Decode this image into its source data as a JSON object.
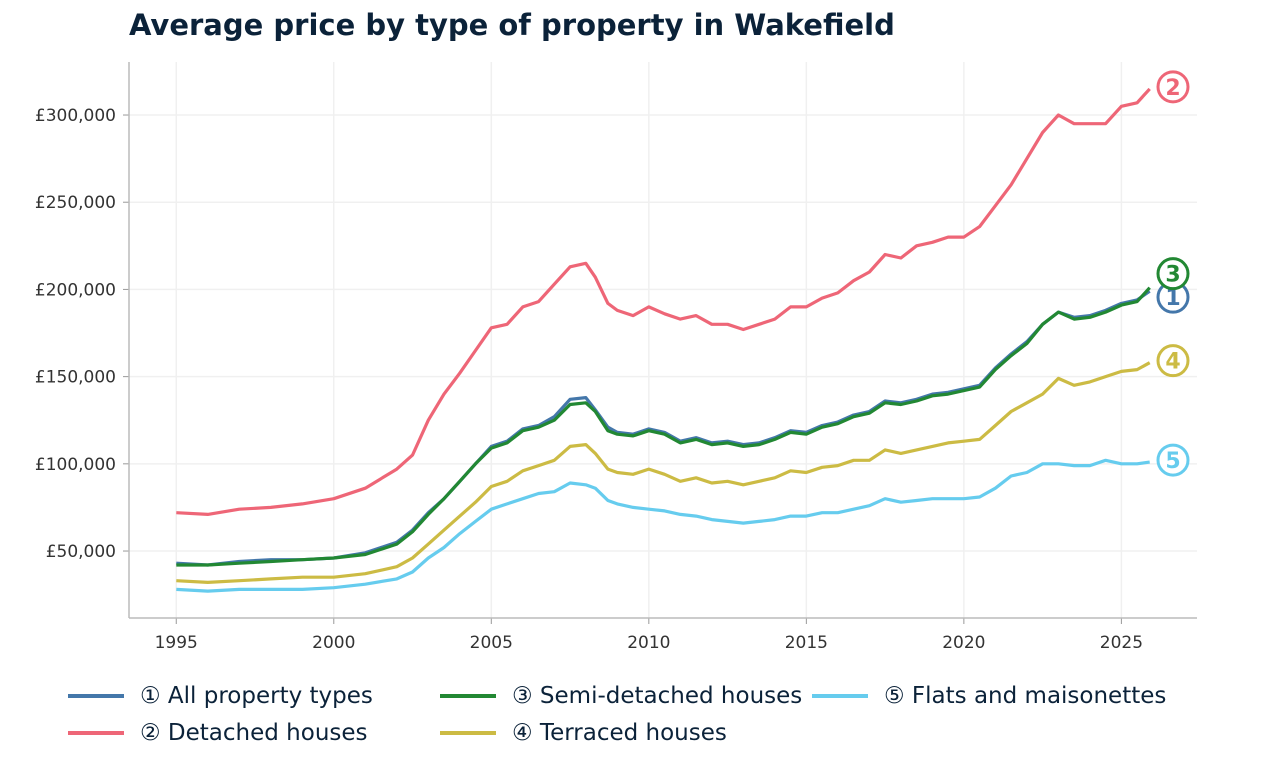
{
  "title": "Average price by type of property in Wakefield",
  "chart_data": {
    "type": "line",
    "title": "Average price by type of property in Wakefield",
    "xlabel": "",
    "ylabel": "",
    "xlim": [
      1993.5,
      2027.4
    ],
    "ylim": [
      11600,
      330400
    ],
    "xticks": [
      1995,
      2000,
      2005,
      2010,
      2015,
      2020,
      2025
    ],
    "xtick_labels": [
      "1995",
      "2000",
      "2005",
      "2010",
      "2015",
      "2020",
      "2025"
    ],
    "yticks": [
      50000,
      100000,
      150000,
      200000,
      250000,
      300000
    ],
    "ytick_labels": [
      "£50,000",
      "£100,000",
      "£150,000",
      "£200,000",
      "£250,000",
      "£300,000"
    ],
    "grid": true,
    "legend_placement": "bottom",
    "x": [
      1995,
      1996,
      1997,
      1998,
      1999,
      2000,
      2001,
      2002,
      2002.5,
      2003,
      2003.5,
      2004,
      2004.5,
      2005,
      2005.5,
      2006,
      2006.5,
      2007,
      2007.5,
      2008,
      2008.3,
      2008.7,
      2009,
      2009.5,
      2010,
      2010.5,
      2011,
      2011.5,
      2012,
      2012.5,
      2013,
      2013.5,
      2014,
      2014.5,
      2015,
      2015.5,
      2016,
      2016.5,
      2017,
      2017.5,
      2018,
      2018.5,
      2019,
      2019.5,
      2020,
      2020.5,
      2021,
      2021.5,
      2022,
      2022.5,
      2023,
      2023.5,
      2024,
      2024.5,
      2025,
      2025.5,
      2025.9
    ],
    "series": [
      {
        "name": "① All property types",
        "marker": "1",
        "color": "#4477aa",
        "values": [
          43000,
          42000,
          44000,
          45000,
          45000,
          46000,
          49000,
          55000,
          62000,
          72000,
          80000,
          90000,
          100000,
          110000,
          113000,
          120000,
          122000,
          127000,
          137000,
          138000,
          131000,
          121000,
          118000,
          117000,
          120000,
          118000,
          113000,
          115000,
          112000,
          113000,
          111000,
          112000,
          115000,
          119000,
          118000,
          122000,
          124000,
          128000,
          130000,
          136000,
          135000,
          137000,
          140000,
          141000,
          143000,
          145000,
          155000,
          163000,
          170000,
          180000,
          187000,
          184000,
          185000,
          188000,
          192000,
          194000,
          199000
        ]
      },
      {
        "name": "② Detached houses",
        "marker": "2",
        "color": "#ee6677",
        "values": [
          72000,
          71000,
          74000,
          75000,
          77000,
          80000,
          86000,
          97000,
          105000,
          125000,
          140000,
          152000,
          165000,
          178000,
          180000,
          190000,
          193000,
          203000,
          213000,
          215000,
          207000,
          192000,
          188000,
          185000,
          190000,
          186000,
          183000,
          185000,
          180000,
          180000,
          177000,
          180000,
          183000,
          190000,
          190000,
          195000,
          198000,
          205000,
          210000,
          220000,
          218000,
          225000,
          227000,
          230000,
          230000,
          236000,
          248000,
          260000,
          275000,
          290000,
          300000,
          295000,
          295000,
          295000,
          305000,
          307000,
          315000
        ]
      },
      {
        "name": "③ Semi-detached houses",
        "marker": "3",
        "color": "#228833",
        "values": [
          42000,
          42000,
          43000,
          44000,
          45000,
          46000,
          48000,
          54000,
          61000,
          71000,
          80000,
          90000,
          100000,
          109000,
          112000,
          119000,
          121000,
          125000,
          134000,
          135000,
          130000,
          119000,
          117000,
          116000,
          119000,
          117000,
          112000,
          114000,
          111000,
          112000,
          110000,
          111000,
          114000,
          118000,
          117000,
          121000,
          123000,
          127000,
          129000,
          135000,
          134000,
          136000,
          139000,
          140000,
          142000,
          144000,
          154000,
          162000,
          169000,
          180000,
          187000,
          183000,
          184000,
          187000,
          191000,
          193000,
          201000
        ]
      },
      {
        "name": "④ Terraced houses",
        "marker": "4",
        "color": "#ccbb44",
        "values": [
          33000,
          32000,
          33000,
          34000,
          35000,
          35000,
          37000,
          41000,
          46000,
          54000,
          62000,
          70000,
          78000,
          87000,
          90000,
          96000,
          99000,
          102000,
          110000,
          111000,
          106000,
          97000,
          95000,
          94000,
          97000,
          94000,
          90000,
          92000,
          89000,
          90000,
          88000,
          90000,
          92000,
          96000,
          95000,
          98000,
          99000,
          102000,
          102000,
          108000,
          106000,
          108000,
          110000,
          112000,
          113000,
          114000,
          122000,
          130000,
          135000,
          140000,
          149000,
          145000,
          147000,
          150000,
          153000,
          154000,
          158000
        ]
      },
      {
        "name": "⑤ Flats and maisonettes",
        "marker": "5",
        "color": "#66ccee",
        "values": [
          28000,
          27000,
          28000,
          28000,
          28000,
          29000,
          31000,
          34000,
          38000,
          46000,
          52000,
          60000,
          67000,
          74000,
          77000,
          80000,
          83000,
          84000,
          89000,
          88000,
          86000,
          79000,
          77000,
          75000,
          74000,
          73000,
          71000,
          70000,
          68000,
          67000,
          66000,
          67000,
          68000,
          70000,
          70000,
          72000,
          72000,
          74000,
          76000,
          80000,
          78000,
          79000,
          80000,
          80000,
          80000,
          81000,
          86000,
          93000,
          95000,
          100000,
          100000,
          99000,
          99000,
          102000,
          100000,
          100000,
          101000
        ]
      }
    ]
  }
}
